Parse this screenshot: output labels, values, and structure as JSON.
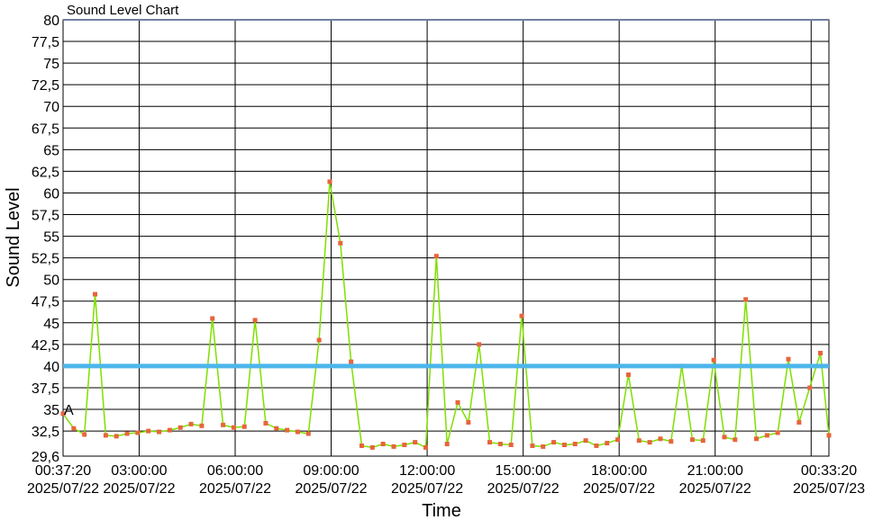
{
  "chart_data": {
    "type": "line",
    "title": "Sound Level Chart",
    "x_label": "Time",
    "y_label": "Sound Level",
    "x": [
      "2025/07/22 00:37:20",
      "2025/07/22 00:57:20",
      "2025/07/22 01:17:20",
      "2025/07/22 01:37:20",
      "2025/07/22 01:57:20",
      "2025/07/22 02:17:20",
      "2025/07/22 02:37:20",
      "2025/07/22 02:57:20",
      "2025/07/22 03:17:20",
      "2025/07/22 03:37:20",
      "2025/07/22 03:57:20",
      "2025/07/22 04:17:20",
      "2025/07/22 04:37:20",
      "2025/07/22 04:57:20",
      "2025/07/22 05:17:20",
      "2025/07/22 05:37:20",
      "2025/07/22 05:57:20",
      "2025/07/22 06:17:20",
      "2025/07/22 06:37:20",
      "2025/07/22 06:57:20",
      "2025/07/22 07:17:20",
      "2025/07/22 07:37:20",
      "2025/07/22 07:57:20",
      "2025/07/22 08:17:20",
      "2025/07/22 08:37:20",
      "2025/07/22 08:57:20",
      "2025/07/22 09:17:20",
      "2025/07/22 09:37:20",
      "2025/07/22 09:57:20",
      "2025/07/22 10:17:20",
      "2025/07/22 10:37:20",
      "2025/07/22 10:57:20",
      "2025/07/22 11:17:20",
      "2025/07/22 11:37:20",
      "2025/07/22 11:57:20",
      "2025/07/22 12:17:20",
      "2025/07/22 12:37:20",
      "2025/07/22 12:57:20",
      "2025/07/22 13:17:20",
      "2025/07/22 13:37:20",
      "2025/07/22 13:57:20",
      "2025/07/22 14:17:20",
      "2025/07/22 14:37:20",
      "2025/07/22 14:57:20",
      "2025/07/22 15:17:20",
      "2025/07/22 15:37:20",
      "2025/07/22 15:57:20",
      "2025/07/22 16:17:20",
      "2025/07/22 16:37:20",
      "2025/07/22 16:57:20",
      "2025/07/22 17:17:20",
      "2025/07/22 17:37:20",
      "2025/07/22 17:57:20",
      "2025/07/22 18:17:20",
      "2025/07/22 18:37:20",
      "2025/07/22 18:57:20",
      "2025/07/22 19:17:20",
      "2025/07/22 19:37:20",
      "2025/07/22 19:57:20",
      "2025/07/22 20:17:20",
      "2025/07/22 20:37:20",
      "2025/07/22 20:57:20",
      "2025/07/22 21:17:20",
      "2025/07/22 21:37:20",
      "2025/07/22 21:57:20",
      "2025/07/22 22:17:20",
      "2025/07/22 22:37:20",
      "2025/07/22 22:57:20",
      "2025/07/22 23:17:20",
      "2025/07/22 23:37:20",
      "2025/07/22 23:57:20",
      "2025/07/23 00:17:20",
      "2025/07/23 00:33:20"
    ],
    "series": [
      {
        "name": "Sound Level",
        "color": "#7ee000",
        "marker_color": "#e8643c",
        "values": [
          34.5,
          32.8,
          32.1,
          48.3,
          32.0,
          31.9,
          32.2,
          32.3,
          32.5,
          32.4,
          32.6,
          32.9,
          33.3,
          33.1,
          45.5,
          33.2,
          32.9,
          33.0,
          45.3,
          33.4,
          32.8,
          32.6,
          32.4,
          32.2,
          43.0,
          61.3,
          54.2,
          40.5,
          30.8,
          30.6,
          31.0,
          30.7,
          30.9,
          31.2,
          30.6,
          52.7,
          31.0,
          35.8,
          33.5,
          42.5,
          31.2,
          31.0,
          30.9,
          45.8,
          30.8,
          30.7,
          31.2,
          30.9,
          31.0,
          31.4,
          30.8,
          31.1,
          31.5,
          39.0,
          31.4,
          31.2,
          31.6,
          31.3,
          40.0,
          31.5,
          31.4,
          40.7,
          31.8,
          31.5,
          47.7,
          31.6,
          32.0,
          32.3,
          40.8,
          33.5,
          37.5,
          41.5,
          32.0
        ]
      }
    ],
    "threshold": {
      "value": 40,
      "color": "#4db6ea"
    },
    "annotations": [
      {
        "text": "A",
        "x": "2025/07/22 00:37:20",
        "y": 35
      }
    ],
    "xlim": [
      "2025/07/22 00:37:20",
      "2025/07/23 00:33:20"
    ],
    "xticks": [
      {
        "value": "2025/07/22 00:37:20",
        "label": "00:37:20\n2025/07/22"
      },
      {
        "value": "2025/07/22 03:00:00",
        "label": "03:00:00\n2025/07/22"
      },
      {
        "value": "2025/07/22 06:00:00",
        "label": "06:00:00\n2025/07/22"
      },
      {
        "value": "2025/07/22 09:00:00",
        "label": "09:00:00\n2025/07/22"
      },
      {
        "value": "2025/07/22 12:00:00",
        "label": "12:00:00\n2025/07/22"
      },
      {
        "value": "2025/07/22 15:00:00",
        "label": "15:00:00\n2025/07/22"
      },
      {
        "value": "2025/07/22 18:00:00",
        "label": "18:00:00\n2025/07/22"
      },
      {
        "value": "2025/07/22 21:00:00",
        "label": "21:00:00\n2025/07/22"
      },
      {
        "value": "2025/07/23 00:00:00",
        "label": null
      },
      {
        "value": "2025/07/23 00:33:20",
        "label": "00:33:20\n2025/07/23"
      }
    ],
    "ylim": [
      29.6,
      80
    ],
    "yticks": [
      {
        "value": 29.6,
        "label": "29,6"
      },
      {
        "value": 32.5,
        "label": "32,5"
      },
      35,
      {
        "value": 37.5,
        "label": "37,5"
      },
      40,
      {
        "value": 42.5,
        "label": "42,5"
      },
      45,
      {
        "value": 47.5,
        "label": "47,5"
      },
      50,
      {
        "value": 52.5,
        "label": "52,5"
      },
      55,
      {
        "value": 57.5,
        "label": "57,5"
      },
      60,
      {
        "value": 62.5,
        "label": "62,5"
      },
      65,
      {
        "value": 67.5,
        "label": "67,5"
      },
      70,
      {
        "value": 72.5,
        "label": "72,5"
      },
      75,
      {
        "value": 77.5,
        "label": "77,5"
      },
      80
    ],
    "grid": true
  }
}
